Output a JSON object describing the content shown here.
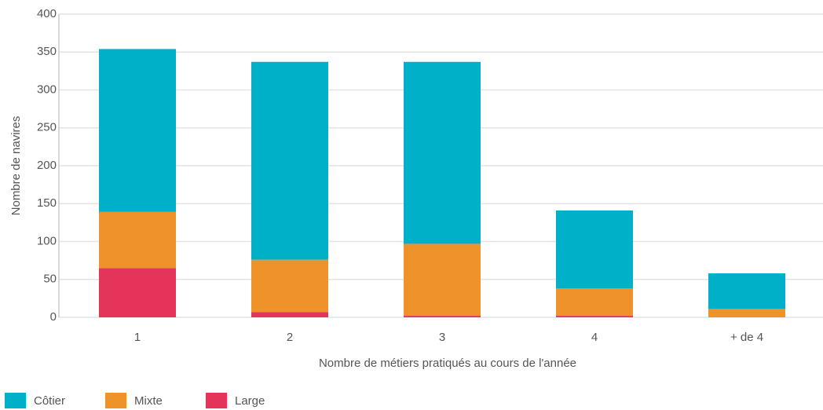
{
  "chart_data": {
    "type": "stacked_bar",
    "x_label": "Nombre de métiers pratiqués au cours de l'année",
    "y_label": "Nombre de navires",
    "categories": [
      "1",
      "2",
      "3",
      "4",
      "+ de 4"
    ],
    "series": [
      {
        "name": "Large",
        "color": "#e5345a",
        "values": [
          65,
          7,
          2,
          2,
          0
        ]
      },
      {
        "name": "Mixte",
        "color": "#f0922a",
        "values": [
          74,
          69,
          95,
          36,
          11
        ]
      },
      {
        "name": "Côtier",
        "color": "#00b0c8",
        "values": [
          215,
          261,
          240,
          103,
          47
        ]
      }
    ],
    "ylim": [
      0,
      400
    ],
    "yticks": [
      0,
      50,
      100,
      150,
      200,
      250,
      300,
      350,
      400
    ],
    "grid": true
  }
}
